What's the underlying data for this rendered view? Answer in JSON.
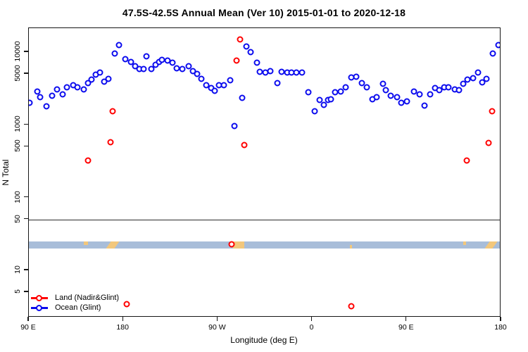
{
  "colors": {
    "land": "#ff0000",
    "ocean": "#0b0bee",
    "band_ocean": "#a8bdd9",
    "band_land": "#f2c77c",
    "axis": "#161616"
  },
  "reference_line": {
    "value": 50
  },
  "surface_band": {
    "top_value": 25,
    "bottom_value": 20,
    "land_marks": [
      {
        "deg0": 142.5,
        "deg1": 146.5,
        "vpos": "top",
        "shape": "dot"
      },
      {
        "deg0": 165.5,
        "deg1": 173.5,
        "vpos": "full",
        "shape": "slash"
      },
      {
        "deg0": 284.5,
        "deg1": 295.0,
        "vpos": "full",
        "shape": "patch"
      },
      {
        "deg0": 396.0,
        "deg1": 398.0,
        "vpos": "bottom",
        "shape": "dot"
      },
      {
        "deg0": 503.5,
        "deg1": 506.5,
        "vpos": "top",
        "shape": "dot"
      },
      {
        "deg0": 526.5,
        "deg1": 534.0,
        "vpos": "full",
        "shape": "slash"
      }
    ]
  },
  "chart_data": {
    "type": "scatter",
    "title": "47.5S-42.5S Annual Mean (Ver 10)   2015-01-01 to 2020-12-18",
    "xlabel": "Longitude (deg E)",
    "ylabel": "N Total",
    "y_scale": "log",
    "y_axis_range": [
      2.2,
      21000
    ],
    "x_axis_degrees": [
      90,
      540
    ],
    "x_ticks": [
      {
        "deg": 90,
        "label": "90 E"
      },
      {
        "deg": 180,
        "label": "180"
      },
      {
        "deg": 270,
        "label": "90 W"
      },
      {
        "deg": 360,
        "label": "0"
      },
      {
        "deg": 450,
        "label": "90 E"
      },
      {
        "deg": 540,
        "label": "180"
      }
    ],
    "y_ticks": [
      {
        "value": 10000,
        "label": "10000"
      },
      {
        "value": 5000,
        "label": "5000"
      },
      {
        "value": 1000,
        "label": "1000"
      },
      {
        "value": 500,
        "label": "500"
      },
      {
        "value": 100,
        "label": "100"
      },
      {
        "value": 50,
        "label": "50"
      },
      {
        "value": 10,
        "label": "10"
      },
      {
        "value": 5,
        "label": "5"
      }
    ],
    "legend_position": "bottom-left",
    "series": [
      {
        "name": "Land (Nadir&Glint)",
        "color": "#ff0000",
        "points": [
          [
            146,
            320
          ],
          [
            168,
            580
          ],
          [
            170,
            1550
          ],
          [
            183,
            3.4
          ],
          [
            283,
            23
          ],
          [
            288,
            7700
          ],
          [
            291,
            15000
          ],
          [
            295,
            530
          ],
          [
            397,
            3.2
          ],
          [
            507,
            320
          ],
          [
            528,
            570
          ],
          [
            531,
            1550
          ]
        ]
      },
      {
        "name": "Ocean (Glint)",
        "color": "#0b0bee",
        "points": [
          [
            91,
            2000
          ],
          [
            98,
            2900
          ],
          [
            101,
            2400
          ],
          [
            107,
            1800
          ],
          [
            112,
            2500
          ],
          [
            117,
            3100
          ],
          [
            122,
            2600
          ],
          [
            126,
            3300
          ],
          [
            132,
            3500
          ],
          [
            136,
            3300
          ],
          [
            142,
            3100
          ],
          [
            146,
            3750
          ],
          [
            150,
            4200
          ],
          [
            154,
            4900
          ],
          [
            158,
            5250
          ],
          [
            162,
            3900
          ],
          [
            166,
            4300
          ],
          [
            172,
            9500
          ],
          [
            176,
            12500
          ],
          [
            182,
            8000
          ],
          [
            187,
            7300
          ],
          [
            191,
            6400
          ],
          [
            195,
            5850
          ],
          [
            199,
            5850
          ],
          [
            202,
            8750
          ],
          [
            207,
            5900
          ],
          [
            211,
            6700
          ],
          [
            214,
            7300
          ],
          [
            217,
            7850
          ],
          [
            222,
            7700
          ],
          [
            227,
            7200
          ],
          [
            231,
            6000
          ],
          [
            236,
            5900
          ],
          [
            242,
            6400
          ],
          [
            246,
            5500
          ],
          [
            250,
            5000
          ],
          [
            254,
            4300
          ],
          [
            259,
            3500
          ],
          [
            264,
            3200
          ],
          [
            267,
            2950
          ],
          [
            271,
            3500
          ],
          [
            276,
            3500
          ],
          [
            282,
            4100
          ],
          [
            286,
            960
          ],
          [
            293,
            2350
          ],
          [
            297,
            12000
          ],
          [
            301,
            10000
          ],
          [
            307,
            7200
          ],
          [
            310,
            5400
          ],
          [
            315,
            5200
          ],
          [
            320,
            5500
          ],
          [
            327,
            3750
          ],
          [
            331,
            5400
          ],
          [
            336,
            5200
          ],
          [
            340,
            5200
          ],
          [
            345,
            5300
          ],
          [
            350,
            5200
          ],
          [
            356,
            2800
          ],
          [
            362,
            1550
          ],
          [
            367,
            2200
          ],
          [
            371,
            1900
          ],
          [
            375,
            2200
          ],
          [
            378,
            2250
          ],
          [
            382,
            2800
          ],
          [
            387,
            2900
          ],
          [
            392,
            3300
          ],
          [
            397,
            4500
          ],
          [
            402,
            4600
          ],
          [
            407,
            3750
          ],
          [
            412,
            3300
          ],
          [
            417,
            2250
          ],
          [
            421,
            2400
          ],
          [
            427,
            3700
          ],
          [
            430,
            3000
          ],
          [
            435,
            2500
          ],
          [
            441,
            2400
          ],
          [
            445,
            2000
          ],
          [
            450,
            2100
          ],
          [
            457,
            2900
          ],
          [
            462,
            2600
          ],
          [
            467,
            1850
          ],
          [
            472,
            2600
          ],
          [
            477,
            3200
          ],
          [
            481,
            3000
          ],
          [
            486,
            3300
          ],
          [
            490,
            3300
          ],
          [
            496,
            3100
          ],
          [
            500,
            3000
          ],
          [
            504,
            3700
          ],
          [
            508,
            4200
          ],
          [
            513,
            4400
          ],
          [
            518,
            5300
          ],
          [
            522,
            3800
          ],
          [
            526,
            4300
          ],
          [
            532,
            9500
          ],
          [
            537,
            12500
          ]
        ]
      }
    ]
  }
}
